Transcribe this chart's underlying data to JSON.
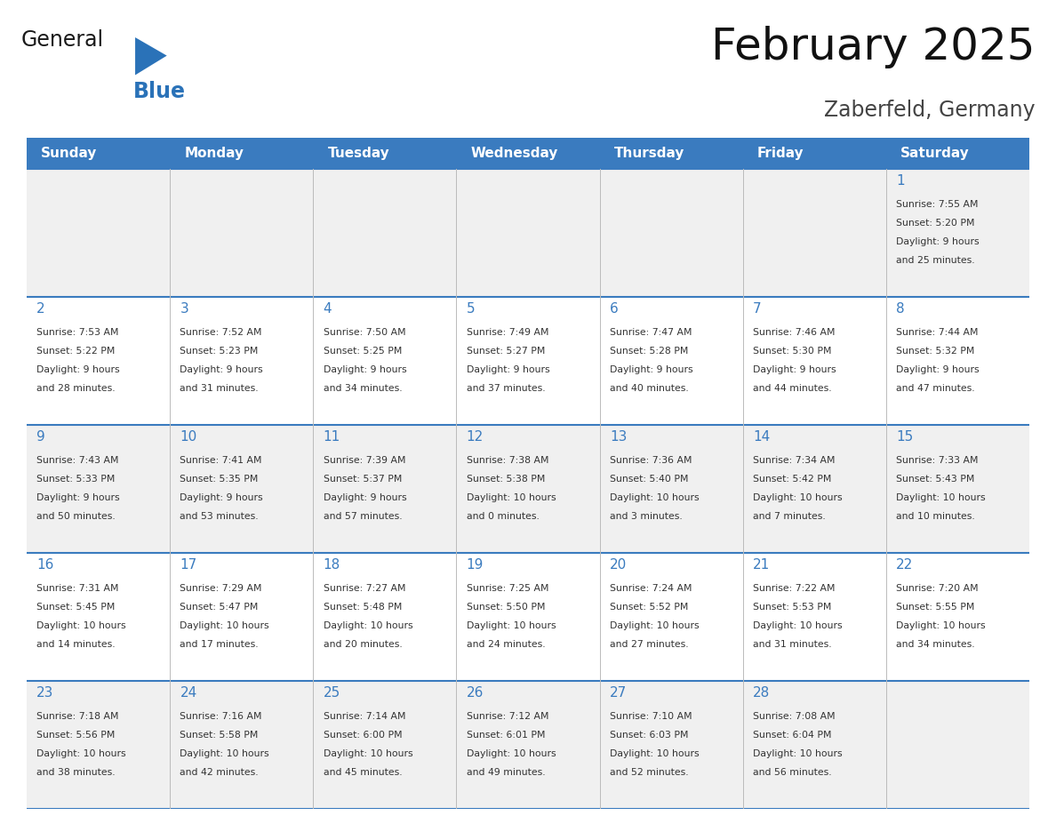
{
  "title": "February 2025",
  "subtitle": "Zaberfeld, Germany",
  "days_of_week": [
    "Sunday",
    "Monday",
    "Tuesday",
    "Wednesday",
    "Thursday",
    "Friday",
    "Saturday"
  ],
  "header_bg": "#3a7bbf",
  "header_text_color": "#ffffff",
  "cell_bg_odd": "#f0f0f0",
  "cell_bg_even": "#ffffff",
  "cell_border_color": "#3a7bbf",
  "day_number_color": "#3a7bbf",
  "text_color": "#333333",
  "logo_general_color": "#1a1a1a",
  "logo_blue_color": "#2a72b8",
  "weeks": [
    {
      "days": [
        {
          "date": null,
          "info": null
        },
        {
          "date": null,
          "info": null
        },
        {
          "date": null,
          "info": null
        },
        {
          "date": null,
          "info": null
        },
        {
          "date": null,
          "info": null
        },
        {
          "date": null,
          "info": null
        },
        {
          "date": 1,
          "info": "Sunrise: 7:55 AM\nSunset: 5:20 PM\nDaylight: 9 hours\nand 25 minutes."
        }
      ]
    },
    {
      "days": [
        {
          "date": 2,
          "info": "Sunrise: 7:53 AM\nSunset: 5:22 PM\nDaylight: 9 hours\nand 28 minutes."
        },
        {
          "date": 3,
          "info": "Sunrise: 7:52 AM\nSunset: 5:23 PM\nDaylight: 9 hours\nand 31 minutes."
        },
        {
          "date": 4,
          "info": "Sunrise: 7:50 AM\nSunset: 5:25 PM\nDaylight: 9 hours\nand 34 minutes."
        },
        {
          "date": 5,
          "info": "Sunrise: 7:49 AM\nSunset: 5:27 PM\nDaylight: 9 hours\nand 37 minutes."
        },
        {
          "date": 6,
          "info": "Sunrise: 7:47 AM\nSunset: 5:28 PM\nDaylight: 9 hours\nand 40 minutes."
        },
        {
          "date": 7,
          "info": "Sunrise: 7:46 AM\nSunset: 5:30 PM\nDaylight: 9 hours\nand 44 minutes."
        },
        {
          "date": 8,
          "info": "Sunrise: 7:44 AM\nSunset: 5:32 PM\nDaylight: 9 hours\nand 47 minutes."
        }
      ]
    },
    {
      "days": [
        {
          "date": 9,
          "info": "Sunrise: 7:43 AM\nSunset: 5:33 PM\nDaylight: 9 hours\nand 50 minutes."
        },
        {
          "date": 10,
          "info": "Sunrise: 7:41 AM\nSunset: 5:35 PM\nDaylight: 9 hours\nand 53 minutes."
        },
        {
          "date": 11,
          "info": "Sunrise: 7:39 AM\nSunset: 5:37 PM\nDaylight: 9 hours\nand 57 minutes."
        },
        {
          "date": 12,
          "info": "Sunrise: 7:38 AM\nSunset: 5:38 PM\nDaylight: 10 hours\nand 0 minutes."
        },
        {
          "date": 13,
          "info": "Sunrise: 7:36 AM\nSunset: 5:40 PM\nDaylight: 10 hours\nand 3 minutes."
        },
        {
          "date": 14,
          "info": "Sunrise: 7:34 AM\nSunset: 5:42 PM\nDaylight: 10 hours\nand 7 minutes."
        },
        {
          "date": 15,
          "info": "Sunrise: 7:33 AM\nSunset: 5:43 PM\nDaylight: 10 hours\nand 10 minutes."
        }
      ]
    },
    {
      "days": [
        {
          "date": 16,
          "info": "Sunrise: 7:31 AM\nSunset: 5:45 PM\nDaylight: 10 hours\nand 14 minutes."
        },
        {
          "date": 17,
          "info": "Sunrise: 7:29 AM\nSunset: 5:47 PM\nDaylight: 10 hours\nand 17 minutes."
        },
        {
          "date": 18,
          "info": "Sunrise: 7:27 AM\nSunset: 5:48 PM\nDaylight: 10 hours\nand 20 minutes."
        },
        {
          "date": 19,
          "info": "Sunrise: 7:25 AM\nSunset: 5:50 PM\nDaylight: 10 hours\nand 24 minutes."
        },
        {
          "date": 20,
          "info": "Sunrise: 7:24 AM\nSunset: 5:52 PM\nDaylight: 10 hours\nand 27 minutes."
        },
        {
          "date": 21,
          "info": "Sunrise: 7:22 AM\nSunset: 5:53 PM\nDaylight: 10 hours\nand 31 minutes."
        },
        {
          "date": 22,
          "info": "Sunrise: 7:20 AM\nSunset: 5:55 PM\nDaylight: 10 hours\nand 34 minutes."
        }
      ]
    },
    {
      "days": [
        {
          "date": 23,
          "info": "Sunrise: 7:18 AM\nSunset: 5:56 PM\nDaylight: 10 hours\nand 38 minutes."
        },
        {
          "date": 24,
          "info": "Sunrise: 7:16 AM\nSunset: 5:58 PM\nDaylight: 10 hours\nand 42 minutes."
        },
        {
          "date": 25,
          "info": "Sunrise: 7:14 AM\nSunset: 6:00 PM\nDaylight: 10 hours\nand 45 minutes."
        },
        {
          "date": 26,
          "info": "Sunrise: 7:12 AM\nSunset: 6:01 PM\nDaylight: 10 hours\nand 49 minutes."
        },
        {
          "date": 27,
          "info": "Sunrise: 7:10 AM\nSunset: 6:03 PM\nDaylight: 10 hours\nand 52 minutes."
        },
        {
          "date": 28,
          "info": "Sunrise: 7:08 AM\nSunset: 6:04 PM\nDaylight: 10 hours\nand 56 minutes."
        },
        {
          "date": null,
          "info": null
        }
      ]
    }
  ]
}
